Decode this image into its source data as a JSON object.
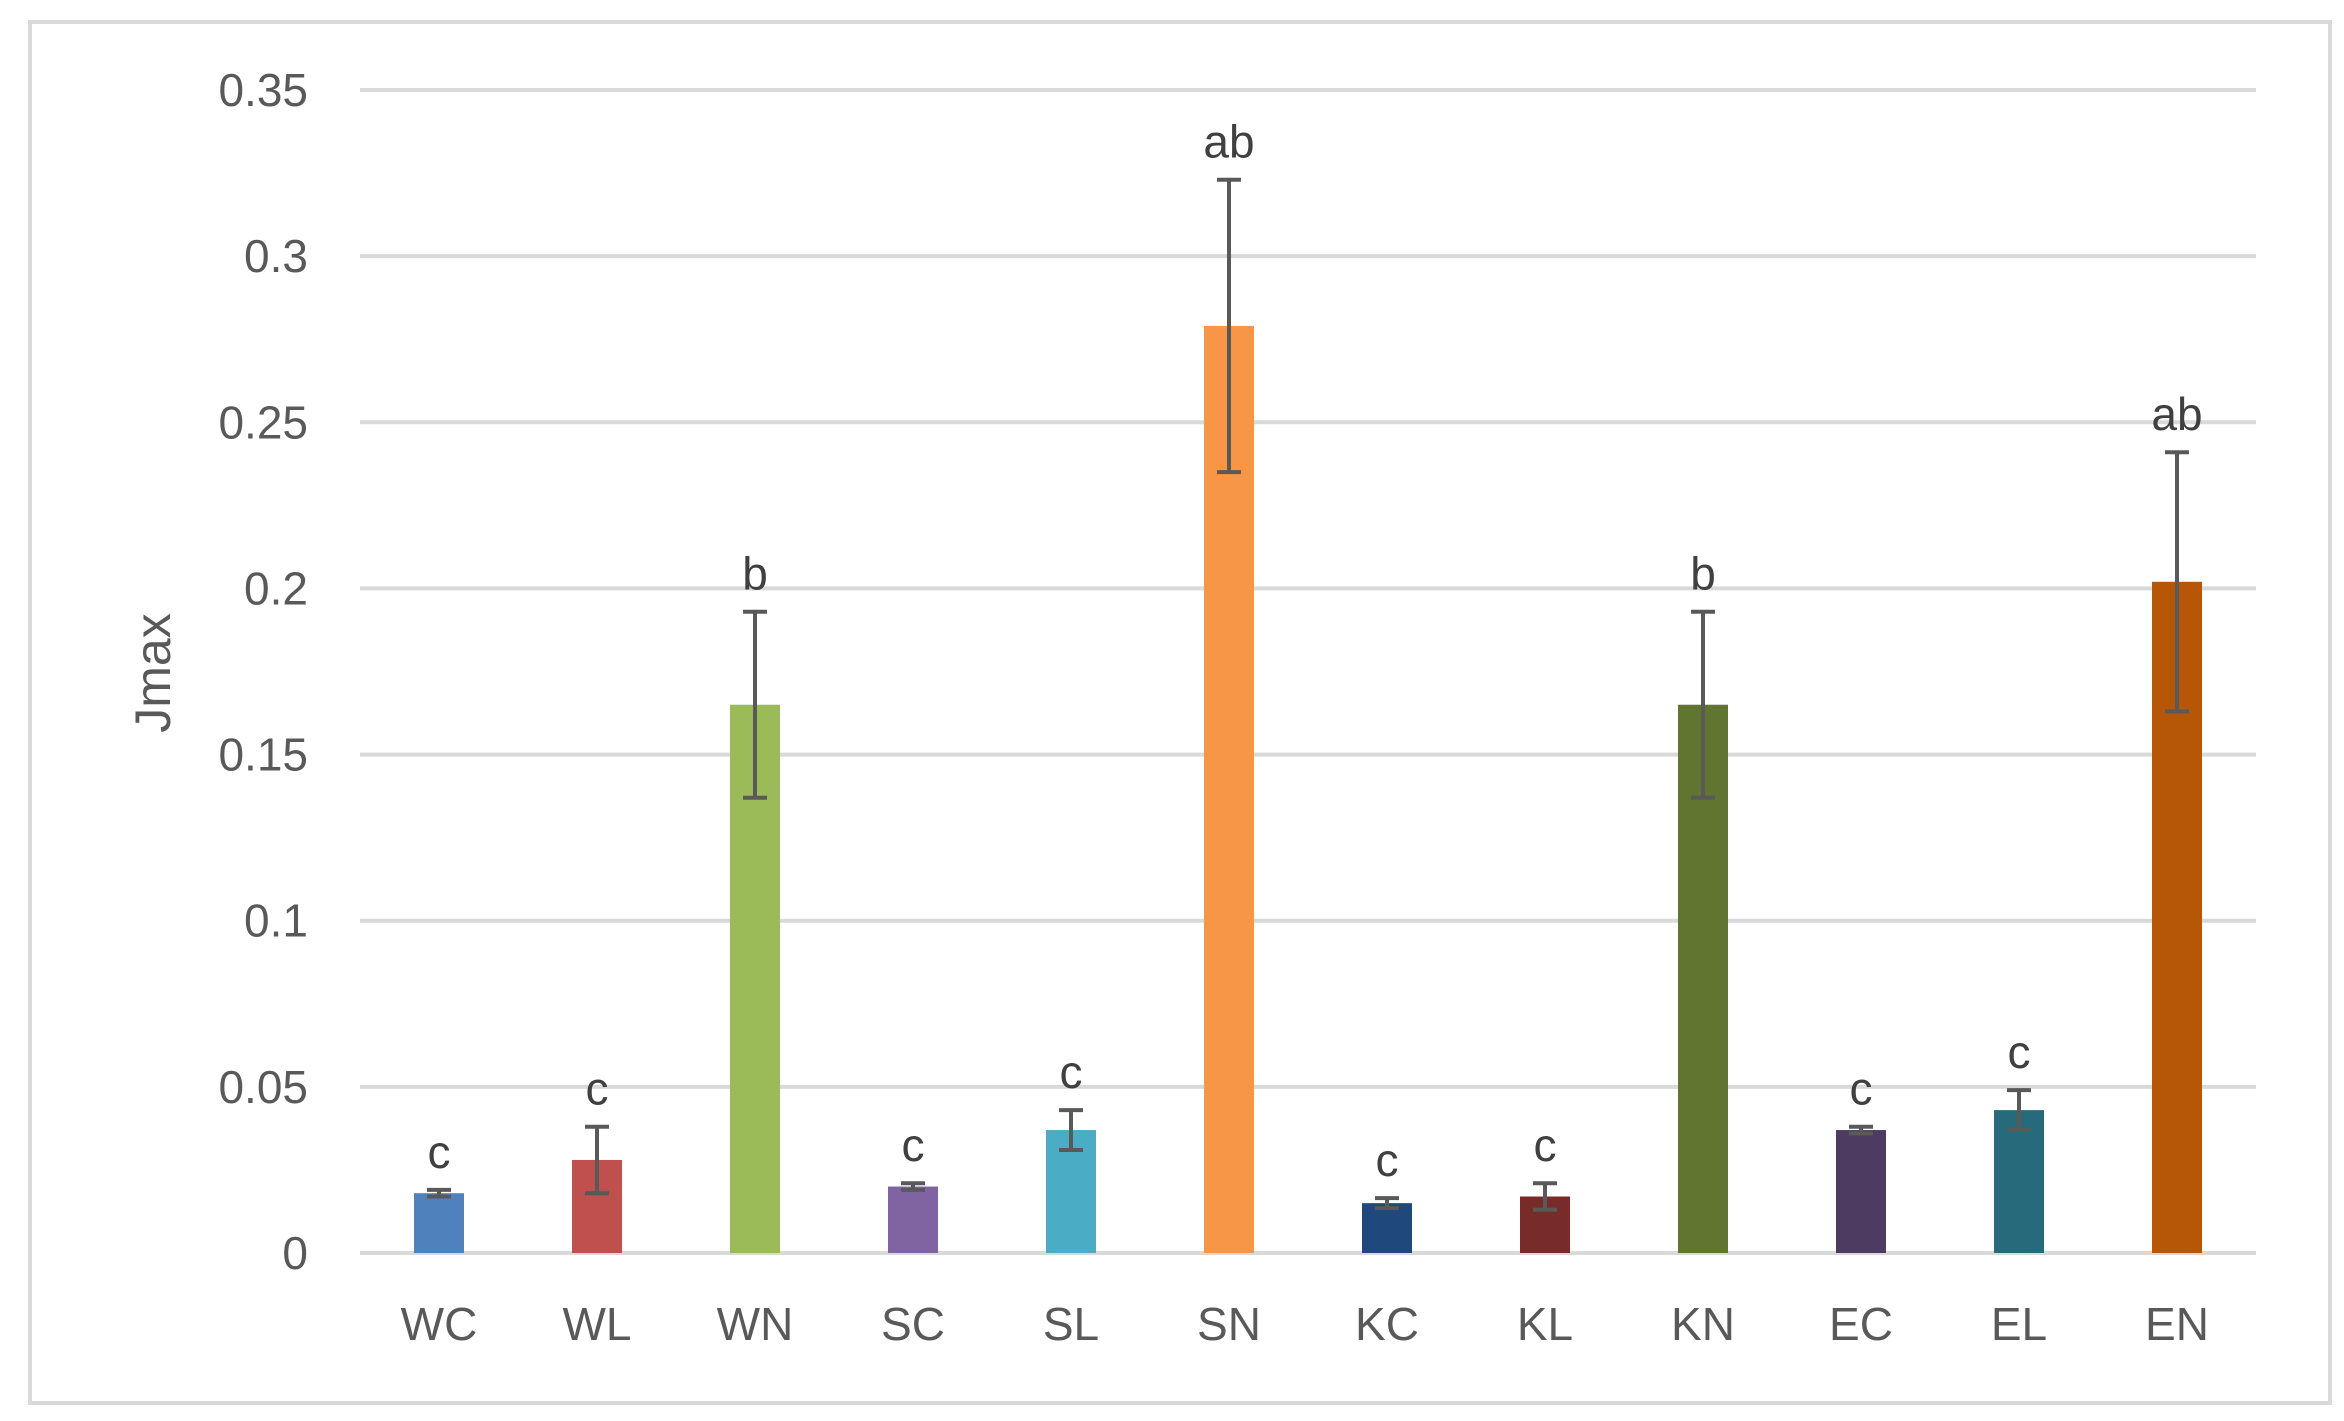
{
  "chart_data": {
    "type": "bar",
    "title": "",
    "xlabel": "",
    "ylabel": "Jmax",
    "ylim": [
      0,
      0.35
    ],
    "y_ticks": [
      "0",
      "0.05",
      "0.1",
      "0.15",
      "0.2",
      "0.25",
      "0.3",
      "0.35"
    ],
    "grid": true,
    "legend": "none",
    "categories": [
      "WC",
      "WL",
      "WN",
      "SC",
      "SL",
      "SN",
      "KC",
      "KL",
      "KN",
      "EC",
      "EL",
      "EN"
    ],
    "values": [
      0.018,
      0.028,
      0.165,
      0.02,
      0.037,
      0.279,
      0.015,
      0.017,
      0.165,
      0.037,
      0.043,
      0.202
    ],
    "error": [
      0.001,
      0.01,
      0.028,
      0.001,
      0.006,
      0.044,
      0.0015,
      0.004,
      0.028,
      0.001,
      0.006,
      0.039
    ],
    "significance_labels": [
      "c",
      "c",
      "b",
      "c",
      "c",
      "ab",
      "c",
      "c",
      "b",
      "c",
      "c",
      "ab"
    ],
    "colors": [
      "#4f81bd",
      "#c0504d",
      "#9bbb59",
      "#8064a2",
      "#4bacc6",
      "#f79646",
      "#1f497d",
      "#772c2a",
      "#5f7530",
      "#4d3b62",
      "#276a7c",
      "#b65708"
    ]
  }
}
